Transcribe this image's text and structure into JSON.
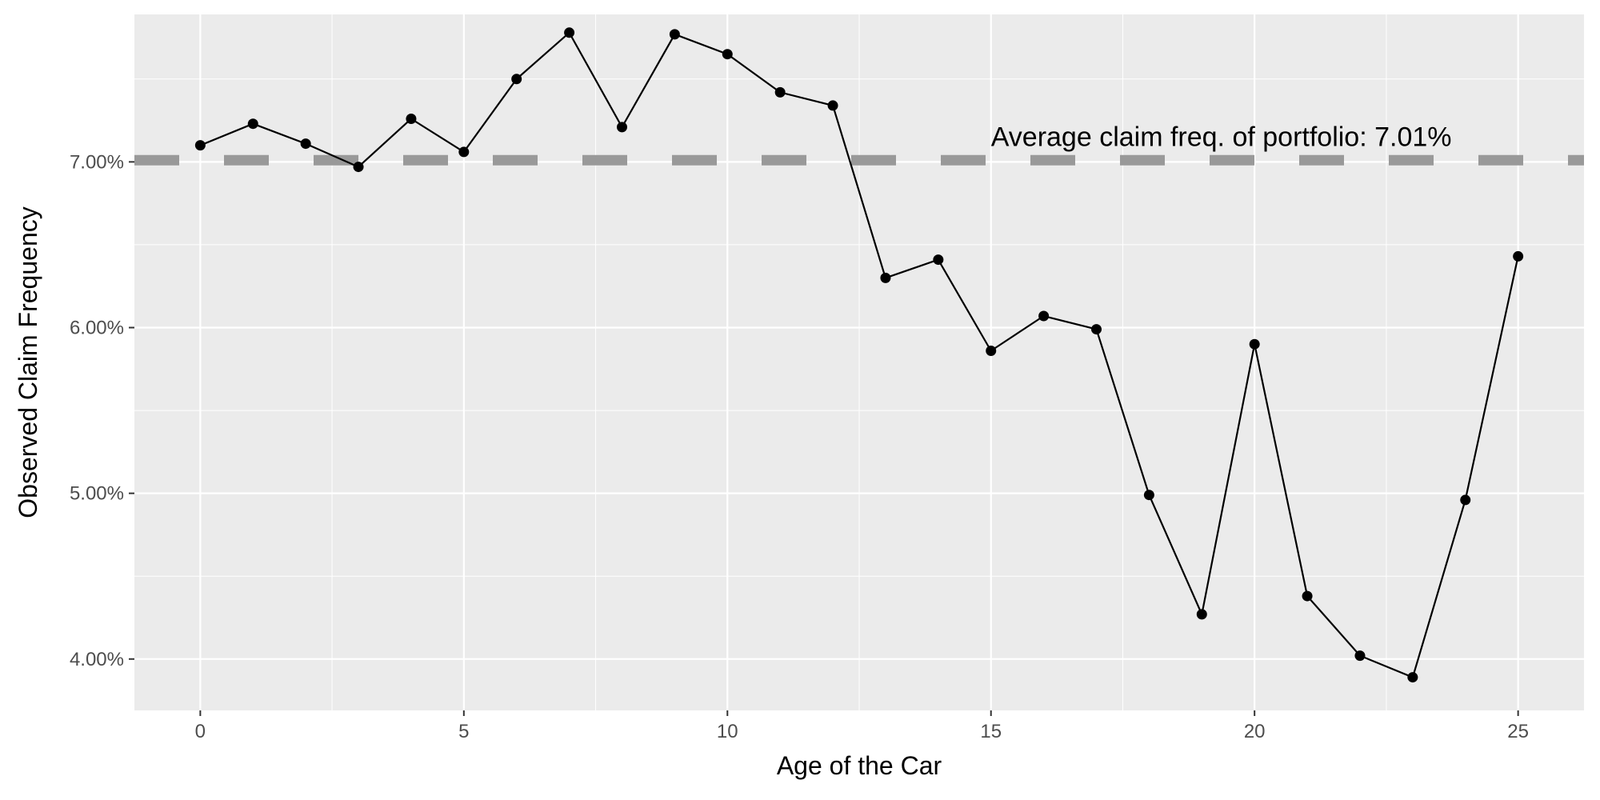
{
  "chart_data": {
    "type": "line",
    "xlabel": "Age of the Car",
    "ylabel": "Observed Claim Frequency",
    "xlim": [
      -1.25,
      26.25
    ],
    "ylim": [
      0.0369,
      0.0789
    ],
    "x_ticks": [
      0,
      5,
      10,
      15,
      20,
      25
    ],
    "x_tick_labels": [
      "0",
      "5",
      "10",
      "15",
      "20",
      "25"
    ],
    "y_ticks": [
      0.04,
      0.05,
      0.06,
      0.07
    ],
    "y_tick_labels": [
      "4.00%",
      "5.00%",
      "6.00%",
      "7.00%"
    ],
    "grid": true,
    "background": "#ebebeb",
    "series": [
      {
        "x": [
          0,
          1,
          2,
          3,
          4,
          5,
          6,
          7,
          8,
          9,
          10,
          11,
          12,
          13,
          14,
          15,
          16,
          17,
          18,
          19,
          20,
          21,
          22,
          23,
          24,
          25
        ],
        "values": [
          0.071,
          0.0723,
          0.0711,
          0.0697,
          0.0726,
          0.0706,
          0.075,
          0.0778,
          0.0721,
          0.0777,
          0.0765,
          0.0742,
          0.0734,
          0.063,
          0.0641,
          0.0586,
          0.0607,
          0.0599,
          0.0499,
          0.0427,
          0.059,
          0.0438,
          0.0402,
          0.0389,
          0.0496,
          0.0643
        ],
        "color": "#000000"
      }
    ],
    "reference_line": {
      "y": 0.0701,
      "style": "dashed",
      "color": "#999999",
      "label": "Average claim freq. of portfolio:  7.01%",
      "label_x": 15
    }
  }
}
